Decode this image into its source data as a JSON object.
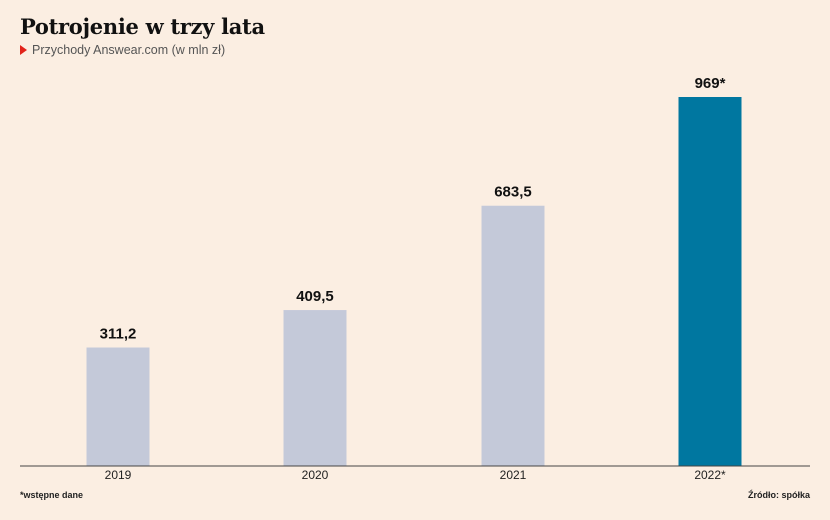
{
  "chart_data": {
    "type": "bar",
    "title": "Potrojenie w trzy lata",
    "subtitle": "Przychody Answear.com (w mln zł)",
    "categories": [
      "2019",
      "2020",
      "2021",
      "2022*"
    ],
    "values": [
      311.2,
      409.5,
      683.5,
      969
    ],
    "value_labels": [
      "311,2",
      "409,5",
      "683,5",
      "969*"
    ],
    "ylim": [
      0,
      969
    ],
    "grid": false,
    "colors": [
      "#c4c9d9",
      "#c4c9d9",
      "#c4c9d9",
      "#0077a0"
    ]
  },
  "footnote": "*wstępne dane",
  "source": "Źródło: spółka"
}
